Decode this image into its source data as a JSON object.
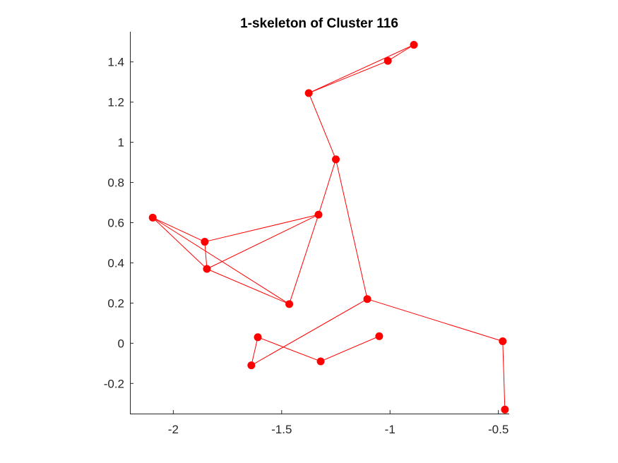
{
  "chart_data": {
    "type": "scatter",
    "title": "1-skeleton of Cluster 116",
    "xlabel": "",
    "ylabel": "",
    "xlim": [
      -2.2,
      -0.45
    ],
    "ylim": [
      -0.35,
      1.55
    ],
    "x_ticks": [
      -2,
      -1.5,
      -1,
      -0.5
    ],
    "x_tick_labels": [
      "-2",
      "-1.5",
      "-1",
      "-0.5"
    ],
    "y_ticks": [
      -0.2,
      0,
      0.2,
      0.4,
      0.6,
      0.8,
      1,
      1.2,
      1.4
    ],
    "y_tick_labels": [
      "-0.2",
      "0",
      "0.2",
      "0.4",
      "0.6",
      "0.8",
      "1",
      "1.2",
      "1.4"
    ],
    "grid": false,
    "marker_color": "#ff0000",
    "edge_color": "#ff0000",
    "nodes": [
      {
        "x": -0.89,
        "y": 1.485
      },
      {
        "x": -1.01,
        "y": 1.405
      },
      {
        "x": -1.375,
        "y": 1.245
      },
      {
        "x": -1.25,
        "y": 0.915
      },
      {
        "x": -1.33,
        "y": 0.64
      },
      {
        "x": -2.095,
        "y": 0.625
      },
      {
        "x": -1.855,
        "y": 0.505
      },
      {
        "x": -1.845,
        "y": 0.37
      },
      {
        "x": -1.465,
        "y": 0.195
      },
      {
        "x": -1.105,
        "y": 0.22
      },
      {
        "x": -0.48,
        "y": 0.01
      },
      {
        "x": -0.47,
        "y": -0.33
      },
      {
        "x": -1.61,
        "y": 0.03
      },
      {
        "x": -1.64,
        "y": -0.11
      },
      {
        "x": -1.32,
        "y": -0.09
      },
      {
        "x": -1.05,
        "y": 0.035
      }
    ],
    "edges": [
      [
        0,
        1
      ],
      [
        0,
        2
      ],
      [
        1,
        2
      ],
      [
        2,
        3
      ],
      [
        3,
        4
      ],
      [
        3,
        9
      ],
      [
        4,
        6
      ],
      [
        4,
        7
      ],
      [
        4,
        8
      ],
      [
        5,
        6
      ],
      [
        5,
        7
      ],
      [
        5,
        8
      ],
      [
        6,
        7
      ],
      [
        7,
        8
      ],
      [
        9,
        10
      ],
      [
        10,
        11
      ],
      [
        9,
        13
      ],
      [
        13,
        12
      ],
      [
        12,
        14
      ],
      [
        14,
        15
      ]
    ]
  }
}
